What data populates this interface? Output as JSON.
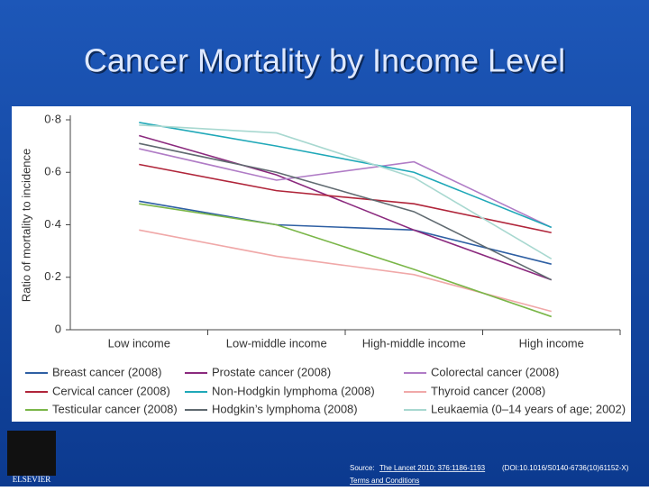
{
  "chart_data": {
    "type": "line",
    "title": "Cancer Mortality by Income Level",
    "y_label": "Ratio of mortality to incidence",
    "categories": [
      "Low income",
      "Low-middle income",
      "High-middle income",
      "High income"
    ],
    "ylim": [
      0,
      0.8
    ],
    "yticks": [
      0,
      {
        "value": 0.2,
        "label": "0·2"
      },
      {
        "value": 0.4,
        "label": "0·4"
      },
      {
        "value": 0.6,
        "label": "0·6"
      },
      {
        "value": 0.8,
        "label": "0·8"
      }
    ],
    "grid": false,
    "series": [
      {
        "name": "Breast cancer (2008)",
        "color": "#2e5fa3",
        "values": [
          0.49,
          0.4,
          0.38,
          0.25
        ]
      },
      {
        "name": "Prostate cancer (2008)",
        "color": "#8b2a7e",
        "values": [
          0.74,
          0.59,
          0.38,
          0.19
        ]
      },
      {
        "name": "Colorectal cancer (2008)",
        "color": "#b07cc6",
        "values": [
          0.69,
          0.57,
          0.64,
          0.39
        ]
      },
      {
        "name": "Cervical cancer (2008)",
        "color": "#b0253a",
        "values": [
          0.63,
          0.53,
          0.48,
          0.37
        ]
      },
      {
        "name": "Non-Hodgkin lymphoma (2008)",
        "color": "#1fa8b8",
        "values": [
          0.79,
          0.7,
          0.6,
          0.39
        ]
      },
      {
        "name": "Thyroid cancer (2008)",
        "color": "#f0a8a8",
        "values": [
          0.38,
          0.28,
          0.21,
          0.07
        ]
      },
      {
        "name": "Testicular cancer (2008)",
        "color": "#7ab648",
        "values": [
          0.48,
          0.4,
          0.23,
          0.05
        ]
      },
      {
        "name": "Hodgkin’s lymphoma (2008)",
        "color": "#606a70",
        "values": [
          0.71,
          0.6,
          0.45,
          0.19
        ]
      },
      {
        "name": "Leukaemia (0–14 years of age; 2002)",
        "color": "#a8d8d0",
        "values": [
          0.78,
          0.75,
          0.58,
          0.27
        ]
      }
    ]
  },
  "footer": {
    "logo": "ELSEVIER",
    "source_label": "Source:",
    "citation": "The Lancet 2010; 376:1186-1193",
    "doi": "(DOI:10.1016/S0140-6736(10)61152-X)",
    "terms": "Terms and Conditions"
  }
}
